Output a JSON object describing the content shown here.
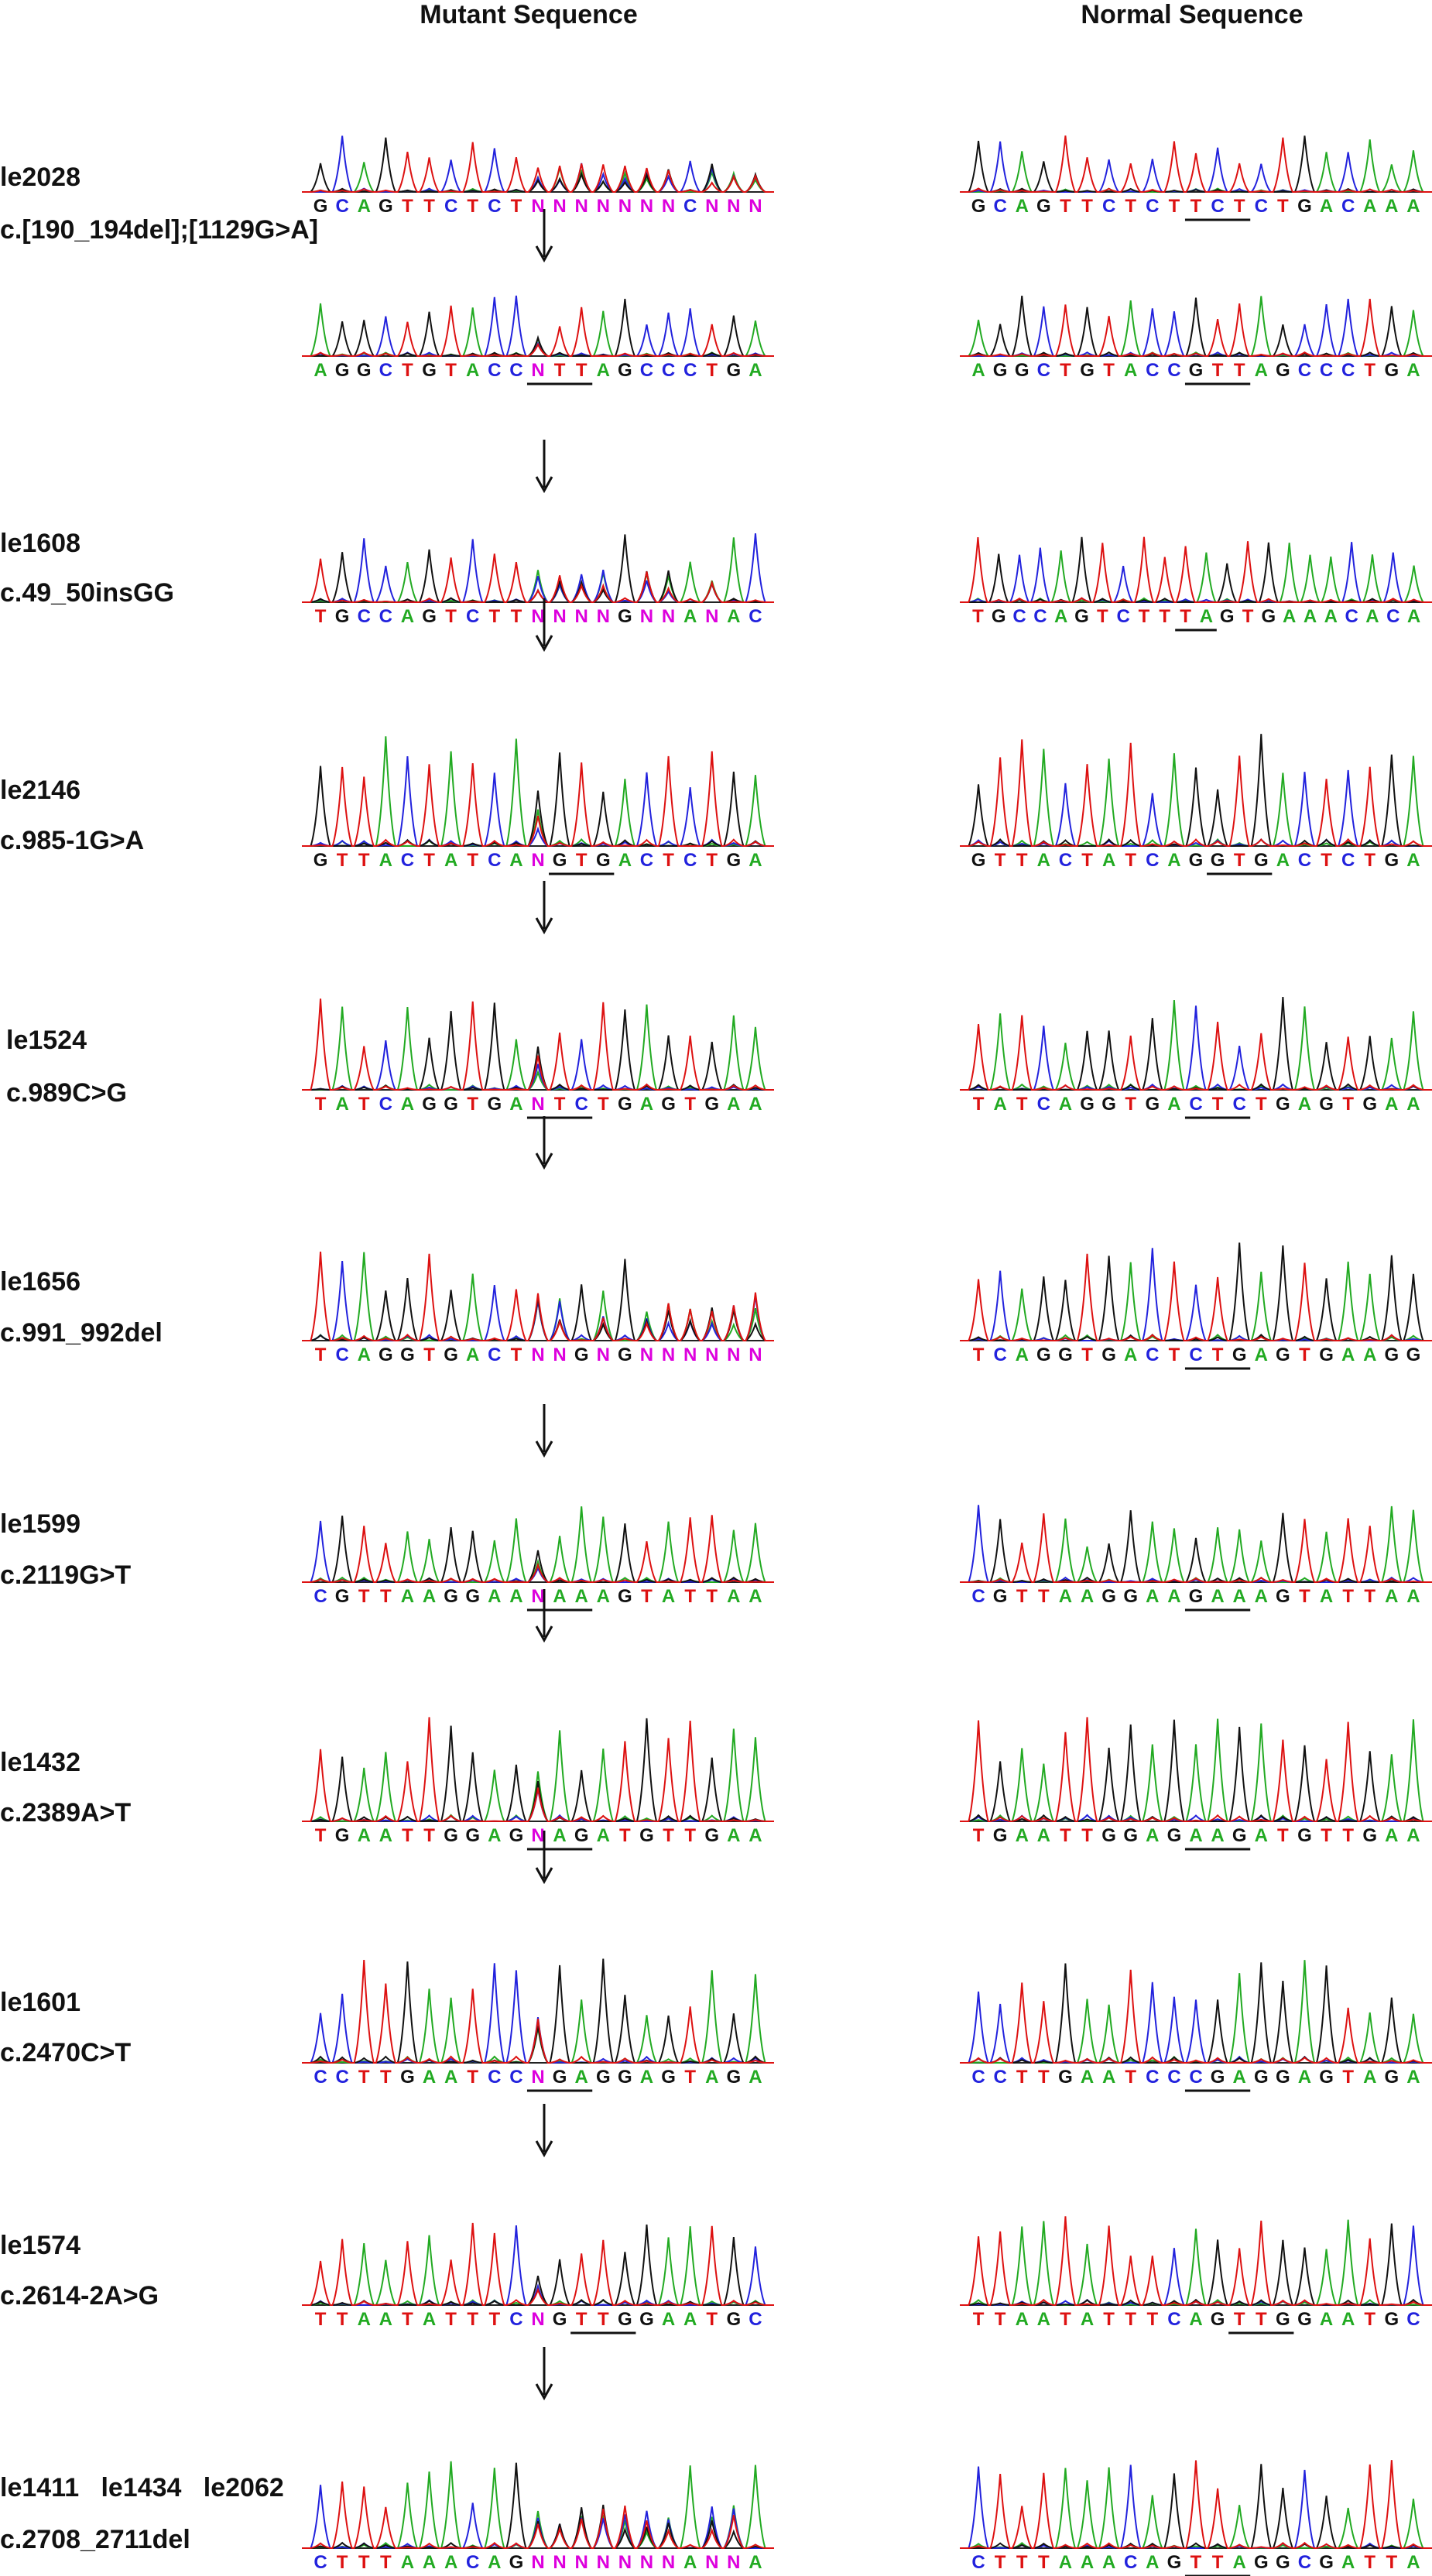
{
  "headers": {
    "mutant": "Mutant Sequence",
    "normal": "Normal Sequence"
  },
  "colors": {
    "A": "#22aa22",
    "C": "#2222dd",
    "G": "#111111",
    "T": "#dd1111",
    "N": "#dd00dd"
  },
  "panels": [
    {
      "id": "le2028",
      "mutation": "c.[190_194del];[1129G>A]",
      "tracks": [
        {
          "mutant": "GCAGTTCTCTNNNNNNNCNNN",
          "normal": "GCAGTTCTCTTCTCTGACAAA",
          "normal_underline": [
            10,
            12
          ]
        },
        {
          "mutant": "AGGCTGTACCNTTAGCCCTGA",
          "normal": "AGGCTGTACCGTTAGCCCTGA",
          "mutant_underline": [
            10,
            12
          ],
          "normal_underline": [
            10,
            12
          ],
          "arrow": true
        }
      ]
    },
    {
      "id": "le1608",
      "mutation": "c.49_50insGG",
      "tracks": [
        {
          "mutant": "TGCCAGTCTTNNNNGNNANAC",
          "normal": "TGCCAGTCTTTAGTGAAACACA",
          "normal_underline": [
            10,
            11
          ],
          "arrow": true
        }
      ]
    },
    {
      "id": "le2146",
      "mutation": "c.985-1G>A",
      "tracks": [
        {
          "mutant": "GTTACTATCANGTGACTCTGA",
          "normal": "GTTACTATCAGGTGACTCTGA",
          "mutant_underline": [
            11,
            13
          ],
          "normal_underline": [
            11,
            13
          ],
          "arrow": true
        }
      ]
    },
    {
      "id": "le1524",
      "mutation": "c.989C>G",
      "tracks": [
        {
          "mutant": "TATCAGGTGANTCTGAGTGAA",
          "normal": "TATCAGGTGACTCTGAGTGAA",
          "mutant_underline": [
            10,
            12
          ],
          "normal_underline": [
            10,
            12
          ],
          "arrow": true
        }
      ]
    },
    {
      "id": "le1656",
      "mutation": "c.991_992del",
      "tracks": [
        {
          "mutant": "TCAGGTGACTNNGNGNNNNNN",
          "normal": "TCAGGTGACTCTGAGTGAAGG",
          "normal_underline": [
            10,
            12
          ],
          "arrow": true
        }
      ]
    },
    {
      "id": "le1599",
      "mutation": "c.2119G>T",
      "tracks": [
        {
          "mutant": "CGTTAAGGAANAAAGTATTAA",
          "normal": "CGTTAAGGAAGAAAGTATTAA",
          "mutant_underline": [
            10,
            12
          ],
          "normal_underline": [
            10,
            12
          ],
          "arrow": true
        }
      ]
    },
    {
      "id": "le1432",
      "mutation": "c.2389A>T",
      "tracks": [
        {
          "mutant": "TGAATTGGAGNAGATGTTGAA",
          "normal": "TGAATTGGAGAAGATGTTGAA",
          "mutant_underline": [
            10,
            12
          ],
          "normal_underline": [
            10,
            12
          ],
          "arrow": true
        }
      ]
    },
    {
      "id": "le1601",
      "mutation": "c.2470C>T",
      "tracks": [
        {
          "mutant": "CCTTGAATCCNGAGGAGTAGA",
          "normal": "CCTTGAATCCCGAGGAGTAGA",
          "mutant_underline": [
            10,
            12
          ],
          "normal_underline": [
            10,
            12
          ],
          "arrow": true
        }
      ]
    },
    {
      "id": "le1574",
      "mutation": "c.2614-2A>G",
      "tracks": [
        {
          "mutant": "TTAATATTTCNGTTGGAATGC",
          "normal": "TTAATATTTCAGTTGGAATGC",
          "mutant_underline": [
            12,
            14
          ],
          "normal_underline": [
            12,
            14
          ],
          "arrow": true
        }
      ]
    },
    {
      "id": "le1411   le1434   le2062",
      "mutation": "c.2708_2711del",
      "tracks": [
        {
          "mutant": "CTTTAAACAGNNNNNNNANNA",
          "normal": "CTTTAAACAGTTAGGCGATTA",
          "normal_underline": [
            10,
            12
          ],
          "arrow": true
        }
      ]
    }
  ]
}
